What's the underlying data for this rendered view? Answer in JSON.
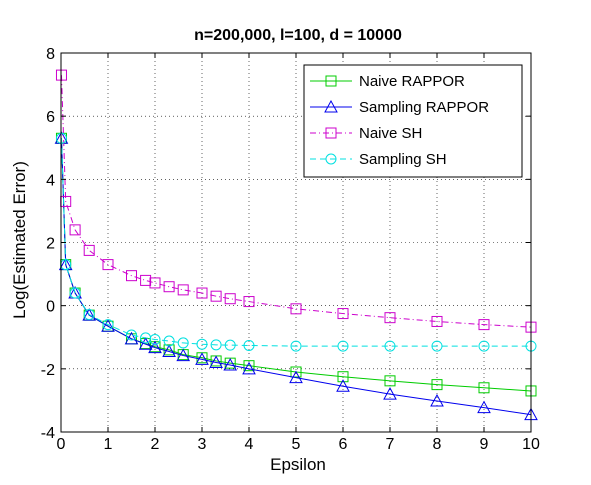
{
  "chart_data": {
    "type": "line",
    "title": "n=200,000, l=100, d = 10000",
    "xlabel": "Epsilon",
    "ylabel": "Log(Estimated Error)",
    "xlim": [
      0,
      10
    ],
    "ylim": [
      -4,
      8
    ],
    "x_ticks": [
      "0",
      "1",
      "2",
      "3",
      "4",
      "5",
      "6",
      "7",
      "8",
      "9",
      "10"
    ],
    "y_ticks": [
      "-4",
      "-2",
      "0",
      "2",
      "4",
      "6",
      "8"
    ],
    "grid": true,
    "legend_position": "top-right",
    "series": [
      {
        "name": "Naive RAPPOR",
        "color": "#00cc00",
        "marker": "square",
        "line_style": "solid",
        "x": [
          0.01,
          0.1,
          0.3,
          0.6,
          1.0,
          1.5,
          1.8,
          2.0,
          2.3,
          2.6,
          3.0,
          3.3,
          3.6,
          4.0,
          5.0,
          6.0,
          7.0,
          8.0,
          9.0,
          10.0
        ],
        "y": [
          5.3,
          1.3,
          0.4,
          -0.3,
          -0.65,
          -1.05,
          -1.2,
          -1.3,
          -1.4,
          -1.55,
          -1.65,
          -1.75,
          -1.82,
          -1.9,
          -2.1,
          -2.25,
          -2.38,
          -2.5,
          -2.6,
          -2.7
        ]
      },
      {
        "name": "Sampling RAPPOR",
        "color": "#0000ee",
        "marker": "triangle",
        "line_style": "solid",
        "x": [
          0.01,
          0.1,
          0.3,
          0.6,
          1.0,
          1.5,
          1.8,
          2.0,
          2.3,
          2.6,
          3.0,
          3.3,
          3.6,
          4.0,
          5.0,
          6.0,
          7.0,
          8.0,
          9.0,
          10.0
        ],
        "y": [
          5.3,
          1.3,
          0.4,
          -0.3,
          -0.65,
          -1.05,
          -1.22,
          -1.33,
          -1.45,
          -1.58,
          -1.7,
          -1.8,
          -1.88,
          -2.0,
          -2.28,
          -2.55,
          -2.8,
          -3.02,
          -3.23,
          -3.45
        ]
      },
      {
        "name": "Naive SH",
        "color": "#cc00cc",
        "marker": "square",
        "line_style": "dashdot",
        "x": [
          0.01,
          0.1,
          0.3,
          0.6,
          1.0,
          1.5,
          1.8,
          2.0,
          2.3,
          2.6,
          3.0,
          3.3,
          3.6,
          4.0,
          5.0,
          6.0,
          7.0,
          8.0,
          9.0,
          10.0
        ],
        "y": [
          7.3,
          3.3,
          2.4,
          1.75,
          1.3,
          0.95,
          0.8,
          0.72,
          0.6,
          0.5,
          0.4,
          0.3,
          0.22,
          0.13,
          -0.1,
          -0.25,
          -0.38,
          -0.5,
          -0.6,
          -0.68
        ]
      },
      {
        "name": "Sampling SH",
        "color": "#00e0e0",
        "marker": "circle",
        "line_style": "dashed",
        "x": [
          0.01,
          0.1,
          0.3,
          0.6,
          1.0,
          1.5,
          1.8,
          2.0,
          2.3,
          2.6,
          3.0,
          3.3,
          3.6,
          4.0,
          5.0,
          6.0,
          7.0,
          8.0,
          9.0,
          10.0
        ],
        "y": [
          5.3,
          1.3,
          0.4,
          -0.28,
          -0.6,
          -0.93,
          -1.02,
          -1.07,
          -1.12,
          -1.18,
          -1.22,
          -1.24,
          -1.25,
          -1.26,
          -1.28,
          -1.28,
          -1.28,
          -1.28,
          -1.28,
          -1.28
        ]
      }
    ]
  }
}
